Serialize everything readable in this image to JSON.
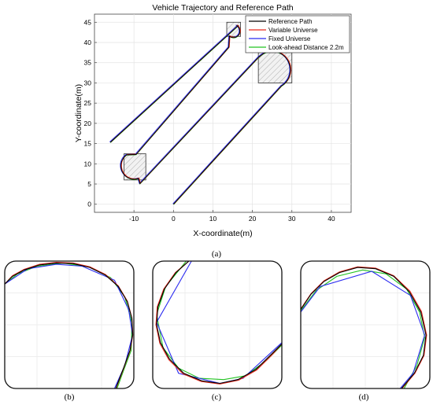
{
  "chart_data": [
    {
      "type": "line",
      "title": "Vehicle Trajectory and Reference Path",
      "xlabel": "X-coordinate(m)",
      "ylabel": "Y-coordinate(m)",
      "xlim": [
        -20,
        45
      ],
      "ylim": [
        -2,
        47
      ],
      "xticks": [
        -10,
        0,
        10,
        20,
        30,
        40
      ],
      "yticks": [
        0,
        5,
        10,
        15,
        20,
        25,
        30,
        35,
        40,
        45
      ],
      "x_tick_labels": [
        "-10",
        "0",
        "10",
        "20",
        "30",
        "40"
      ],
      "y_tick_labels": [
        "0",
        "5",
        "10",
        "15",
        "20",
        "25",
        "30",
        "35",
        "40",
        "45"
      ],
      "grid": true,
      "legend_position": "top-right",
      "series": [
        {
          "name": "Reference Path",
          "color": "#000000"
        },
        {
          "name": "Variable Universe",
          "color": "#e8291c"
        },
        {
          "name": "Fixed Universe",
          "color": "#2b2bf0"
        },
        {
          "name": "Look-ahead Distance 2.2m",
          "color": "#22c322"
        }
      ],
      "path": {
        "segments": [
          {
            "kind": "line",
            "from": [
              0,
              0
            ],
            "to": [
              27.3,
              29.2
            ]
          },
          {
            "kind": "arc",
            "center": [
              25,
              33.2
            ],
            "radius": 4.6,
            "from_deg": -60,
            "to_deg": 135,
            "ccw": true
          },
          {
            "kind": "line",
            "from": [
              21.7,
              36.5
            ],
            "to": [
              -8.5,
              5.1
            ]
          },
          {
            "kind": "arc",
            "center": [
              -10,
              9.5
            ],
            "radius": 3.3,
            "from_deg": -70,
            "to_deg": -235,
            "ccw": false
          },
          {
            "kind": "line",
            "from": [
              -9.5,
              12.3
            ],
            "to": [
              14,
              38.8
            ]
          },
          {
            "kind": "arc",
            "center": [
              15.2,
              42.8
            ],
            "radius": 1.6,
            "from_deg": -130,
            "to_deg": 55,
            "ccw": true
          },
          {
            "kind": "line",
            "from": [
              16.3,
              44.1
            ],
            "to": [
              -16,
              15.3
            ]
          }
        ]
      },
      "zoom_boxes": [
        {
          "x": [
            -12.5,
            -7
          ],
          "y": [
            6,
            12.5
          ]
        },
        {
          "x": [
            13.5,
            17
          ],
          "y": [
            41.5,
            45
          ]
        },
        {
          "x": [
            21.5,
            30
          ],
          "y": [
            30,
            37.5
          ]
        }
      ]
    },
    {
      "type": "line",
      "panel": "b",
      "series_points": {
        "black": [
          [
            0,
            0.82
          ],
          [
            0.06,
            0.88
          ],
          [
            0.15,
            0.93
          ],
          [
            0.27,
            0.97
          ],
          [
            0.4,
            0.985
          ],
          [
            0.53,
            0.98
          ],
          [
            0.66,
            0.95
          ],
          [
            0.78,
            0.89
          ],
          [
            0.88,
            0.8
          ],
          [
            0.95,
            0.68
          ],
          [
            0.985,
            0.55
          ],
          [
            0.99,
            0.42
          ],
          [
            0.97,
            0.3
          ],
          [
            0.92,
            0.16
          ],
          [
            0.86,
            0.0
          ]
        ],
        "red": [
          [
            0,
            0.82
          ],
          [
            0.06,
            0.885
          ],
          [
            0.15,
            0.935
          ],
          [
            0.27,
            0.975
          ],
          [
            0.4,
            0.99
          ],
          [
            0.53,
            0.985
          ],
          [
            0.66,
            0.955
          ],
          [
            0.78,
            0.895
          ],
          [
            0.88,
            0.805
          ],
          [
            0.95,
            0.685
          ],
          [
            0.985,
            0.555
          ],
          [
            0.992,
            0.42
          ],
          [
            0.972,
            0.3
          ],
          [
            0.922,
            0.16
          ],
          [
            0.862,
            0.0
          ]
        ],
        "blue": [
          [
            0,
            0.82
          ],
          [
            0.18,
            0.94
          ],
          [
            0.4,
            0.975
          ],
          [
            0.6,
            0.96
          ],
          [
            0.85,
            0.85
          ],
          [
            0.96,
            0.62
          ],
          [
            0.99,
            0.42
          ],
          [
            0.93,
            0.18
          ],
          [
            0.85,
            0.0
          ]
        ],
        "green": [
          [
            0,
            0.82
          ],
          [
            0.1,
            0.9
          ],
          [
            0.25,
            0.96
          ],
          [
            0.45,
            0.985
          ],
          [
            0.65,
            0.955
          ],
          [
            0.82,
            0.87
          ],
          [
            0.93,
            0.72
          ],
          [
            0.985,
            0.52
          ],
          [
            0.98,
            0.3
          ],
          [
            0.92,
            0.14
          ],
          [
            0.87,
            0.0
          ]
        ]
      }
    },
    {
      "type": "line",
      "panel": "c",
      "series_points": {
        "black": [
          [
            0.28,
            1.0
          ],
          [
            0.18,
            0.91
          ],
          [
            0.09,
            0.78
          ],
          [
            0.04,
            0.64
          ],
          [
            0.03,
            0.5
          ],
          [
            0.06,
            0.36
          ],
          [
            0.13,
            0.23
          ],
          [
            0.24,
            0.12
          ],
          [
            0.38,
            0.06
          ],
          [
            0.52,
            0.04
          ],
          [
            0.66,
            0.07
          ],
          [
            0.8,
            0.15
          ],
          [
            0.92,
            0.27
          ],
          [
            1.0,
            0.35
          ]
        ],
        "red": [
          [
            0.28,
            1.0
          ],
          [
            0.175,
            0.91
          ],
          [
            0.085,
            0.78
          ],
          [
            0.035,
            0.64
          ],
          [
            0.025,
            0.5
          ],
          [
            0.055,
            0.355
          ],
          [
            0.125,
            0.225
          ],
          [
            0.235,
            0.115
          ],
          [
            0.375,
            0.055
          ],
          [
            0.52,
            0.035
          ],
          [
            0.665,
            0.065
          ],
          [
            0.805,
            0.145
          ],
          [
            0.925,
            0.265
          ],
          [
            1.0,
            0.35
          ]
        ],
        "blue": [
          [
            0.3,
            1.0
          ],
          [
            0.03,
            0.52
          ],
          [
            0.2,
            0.12
          ],
          [
            0.52,
            0.04
          ],
          [
            0.7,
            0.08
          ],
          [
            1.0,
            0.36
          ]
        ],
        "green": [
          [
            0.26,
            1.0
          ],
          [
            0.1,
            0.8
          ],
          [
            0.03,
            0.58
          ],
          [
            0.08,
            0.32
          ],
          [
            0.2,
            0.16
          ],
          [
            0.36,
            0.08
          ],
          [
            0.55,
            0.07
          ],
          [
            0.72,
            0.1
          ],
          [
            0.88,
            0.22
          ],
          [
            1.0,
            0.34
          ]
        ]
      }
    },
    {
      "type": "line",
      "panel": "d",
      "series_points": {
        "black": [
          [
            0.0,
            0.62
          ],
          [
            0.08,
            0.74
          ],
          [
            0.18,
            0.84
          ],
          [
            0.3,
            0.91
          ],
          [
            0.44,
            0.95
          ],
          [
            0.58,
            0.94
          ],
          [
            0.72,
            0.88
          ],
          [
            0.84,
            0.76
          ],
          [
            0.93,
            0.6
          ],
          [
            0.97,
            0.42
          ],
          [
            0.95,
            0.26
          ],
          [
            0.88,
            0.12
          ],
          [
            0.78,
            0.0
          ]
        ],
        "red": [
          [
            0.0,
            0.625
          ],
          [
            0.08,
            0.745
          ],
          [
            0.18,
            0.845
          ],
          [
            0.3,
            0.915
          ],
          [
            0.44,
            0.955
          ],
          [
            0.58,
            0.945
          ],
          [
            0.72,
            0.885
          ],
          [
            0.845,
            0.765
          ],
          [
            0.935,
            0.605
          ],
          [
            0.975,
            0.42
          ],
          [
            0.955,
            0.26
          ],
          [
            0.885,
            0.12
          ],
          [
            0.785,
            0.0
          ]
        ],
        "blue": [
          [
            0.0,
            0.6
          ],
          [
            0.15,
            0.8
          ],
          [
            0.55,
            0.92
          ],
          [
            0.85,
            0.73
          ],
          [
            0.96,
            0.42
          ],
          [
            0.87,
            0.12
          ],
          [
            0.77,
            0.0
          ]
        ],
        "green": [
          [
            0.0,
            0.61
          ],
          [
            0.12,
            0.77
          ],
          [
            0.28,
            0.88
          ],
          [
            0.48,
            0.93
          ],
          [
            0.66,
            0.9
          ],
          [
            0.82,
            0.78
          ],
          [
            0.92,
            0.6
          ],
          [
            0.96,
            0.4
          ],
          [
            0.9,
            0.18
          ],
          [
            0.8,
            0.0
          ]
        ]
      }
    }
  ],
  "captions": {
    "a": "(a)",
    "b": "(b)",
    "c": "(c)",
    "d": "(d)"
  }
}
